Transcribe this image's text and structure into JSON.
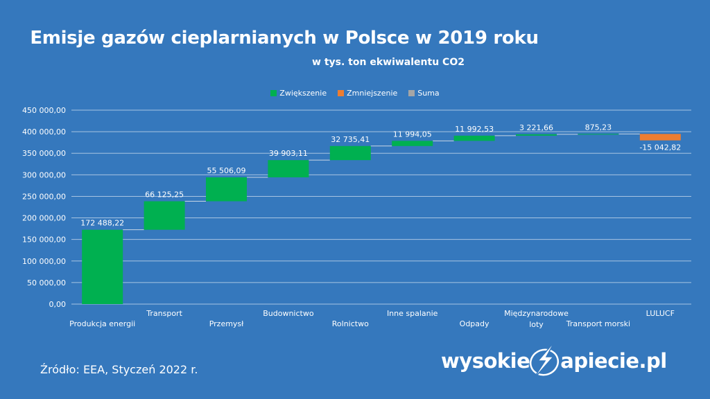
{
  "title": "Emisje gazów cieplarnianych w Polsce w 2019 roku",
  "subtitle": "w tys. ton ekwiwalentu CO2",
  "legend": [
    {
      "label": "Zwiększenie",
      "color": "#00b050"
    },
    {
      "label": "Zmniejszenie",
      "color": "#ed7d31"
    },
    {
      "label": "Suma",
      "color": "#a5a5a5"
    }
  ],
  "source": "Źródło: EEA, Styczeń 2022 r.",
  "logo": {
    "left": "wysokie",
    "right": "apiecie.pl"
  },
  "chart_data": {
    "type": "waterfall",
    "ylim": [
      0,
      450000
    ],
    "ytick_labels": [
      "0,00",
      "50 000,00",
      "100 000,00",
      "150 000,00",
      "200 000,00",
      "250 000,00",
      "300 000,00",
      "350 000,00",
      "400 000,00",
      "450 000,00"
    ],
    "grid": true,
    "legend_position": "top",
    "colors": {
      "increase": "#00b050",
      "decrease": "#ed7d31",
      "total": "#a5a5a5"
    },
    "categories": [
      "Produkcja energii",
      "Transport",
      "Przemysł",
      "Budownictwo",
      "Rolnictwo",
      "Inne spalanie",
      "Odpady",
      "Międzynarodowe loty",
      "Transport morski",
      "LULUCF"
    ],
    "category_labels": [
      [
        "Produkcja energii"
      ],
      [
        "Transport"
      ],
      [
        "Przemysł"
      ],
      [
        "Budownictwo"
      ],
      [
        "Rolnictwo"
      ],
      [
        "Inne spalanie"
      ],
      [
        "Odpady"
      ],
      [
        "Międzynarodowe",
        "loty"
      ],
      [
        "Transport morski"
      ],
      [
        "LULUCF"
      ]
    ],
    "values": [
      172488.22,
      66125.25,
      55506.09,
      39903.11,
      32735.41,
      11994.05,
      11992.53,
      3221.66,
      875.23,
      -15042.82
    ],
    "value_labels": [
      "172 488,22",
      "66 125,25",
      "55 506,09",
      "39 903,11",
      "32 735,41",
      "11 994,05",
      "11 992,53",
      "3 221,66",
      "875,23",
      "-15 042,82"
    ]
  }
}
